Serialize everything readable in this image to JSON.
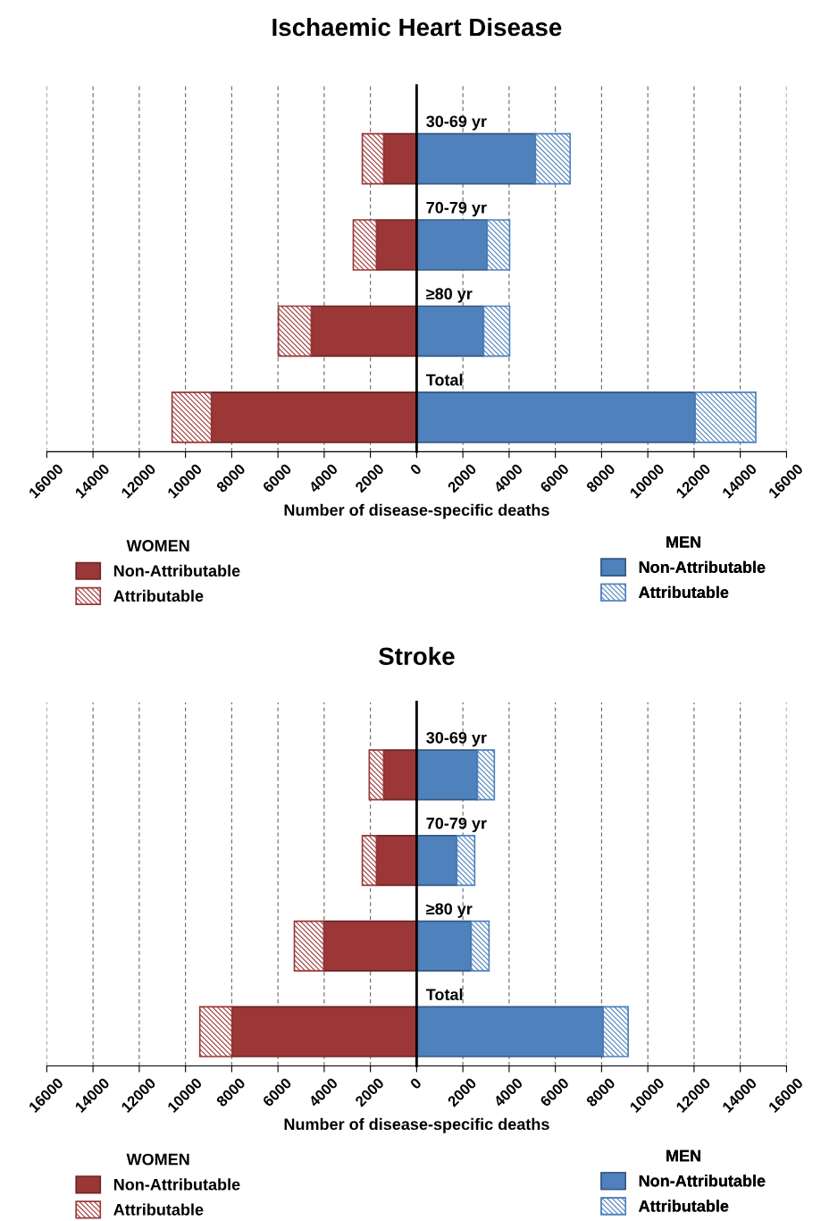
{
  "chart_data": [
    {
      "type": "bar",
      "orientation": "horizontal",
      "stacked": true,
      "title": "Ischaemic Heart Disease",
      "xlabel": "Number of disease-specific deaths",
      "categories": [
        "30-69 yr",
        "70-79 yr",
        "≥80 yr",
        "Total"
      ],
      "series": [
        {
          "name": "Non-Attributable",
          "color": "#9b3737",
          "values": [
            -1430,
            -1740,
            -4560,
            -8880
          ]
        },
        {
          "name": "Attributable",
          "color": "#9b3737",
          "values": [
            -920,
            -1000,
            -1420,
            -1700
          ]
        },
        {
          "name": "Non-Attributable",
          "color": "#4f81bd",
          "values": [
            5140,
            3050,
            2900,
            12050
          ]
        },
        {
          "name": "Attributable",
          "color": "#4f81bd",
          "values": [
            1500,
            970,
            1120,
            2620
          ]
        }
      ],
      "xlim": [
        -16000,
        16000
      ],
      "xticks": [
        {
          "value": -16000,
          "label": "16000"
        },
        {
          "value": -14000,
          "label": "14000"
        },
        {
          "value": -12000,
          "label": "12000"
        },
        {
          "value": -10000,
          "label": "10000"
        },
        {
          "value": -8000,
          "label": "8000"
        },
        {
          "value": -6000,
          "label": "6000"
        },
        {
          "value": -4000,
          "label": "4000"
        },
        {
          "value": -2000,
          "label": "2000"
        },
        0,
        2000,
        4000,
        6000,
        8000,
        10000,
        12000,
        14000,
        16000
      ],
      "grid": "x",
      "legend": "bottom",
      "annotations": [
        "WOMEN",
        "MEN"
      ]
    },
    {
      "type": "bar",
      "orientation": "horizontal",
      "stacked": true,
      "title": "Stroke",
      "xlabel": "Number of disease-specific deaths",
      "categories": [
        "30-69 yr",
        "70-79 yr",
        "≥80 yr",
        "Total"
      ],
      "series": [
        {
          "name": "Non-Attributable",
          "color": "#9b3737",
          "values": [
            -1430,
            -1740,
            -4020,
            -7990
          ]
        },
        {
          "name": "Attributable",
          "color": "#9b3737",
          "values": [
            -620,
            -610,
            -1270,
            -1390
          ]
        },
        {
          "name": "Non-Attributable",
          "color": "#4f81bd",
          "values": [
            2630,
            1740,
            2360,
            8070
          ]
        },
        {
          "name": "Attributable",
          "color": "#4f81bd",
          "values": [
            730,
            770,
            770,
            1080
          ]
        }
      ],
      "xlim": [
        -16000,
        16000
      ],
      "xticks": [
        {
          "value": -16000,
          "label": "16000"
        },
        {
          "value": -14000,
          "label": "14000"
        },
        {
          "value": -12000,
          "label": "12000"
        },
        {
          "value": -10000,
          "label": "10000"
        },
        {
          "value": -8000,
          "label": "8000"
        },
        {
          "value": -6000,
          "label": "6000"
        },
        {
          "value": -4000,
          "label": "4000"
        },
        {
          "value": -2000,
          "label": "2000"
        },
        0,
        2000,
        4000,
        6000,
        8000,
        10000,
        12000,
        14000,
        16000
      ],
      "grid": "x",
      "legend": "bottom",
      "annotations": [
        "WOMEN",
        "MEN"
      ]
    }
  ]
}
